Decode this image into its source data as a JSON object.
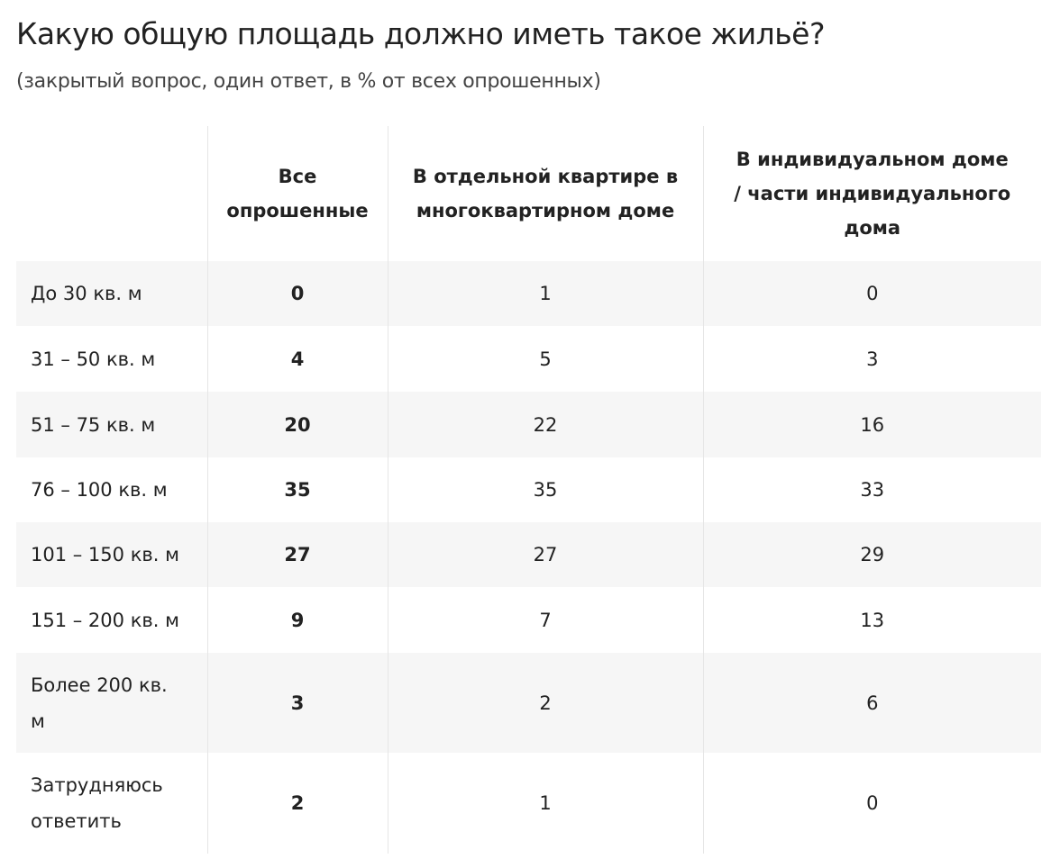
{
  "header": {
    "title": "Какую общую площадь должно иметь такое жильё?",
    "subtitle": "(закрытый вопрос, один ответ, в % от всех опрошенных)"
  },
  "table": {
    "columns": [
      "Все опрошенные",
      "В отдельной квартире в многоквартирном доме",
      "В индивидуальном доме / части индивидуального дома"
    ],
    "rows": [
      [
        "До 30 кв. м",
        0,
        1,
        0
      ],
      [
        "31 – 50 кв. м",
        4,
        5,
        3
      ],
      [
        "51 – 75 кв. м",
        20,
        22,
        16
      ],
      [
        "76 – 100 кв. м",
        35,
        35,
        33
      ],
      [
        "101 – 150 кв. м",
        27,
        27,
        29
      ],
      [
        "151 – 200 кв. м",
        9,
        7,
        13
      ],
      [
        "Более 200 кв. м",
        3,
        2,
        6
      ],
      [
        "Затрудняюсь ответить",
        2,
        1,
        0
      ]
    ]
  }
}
